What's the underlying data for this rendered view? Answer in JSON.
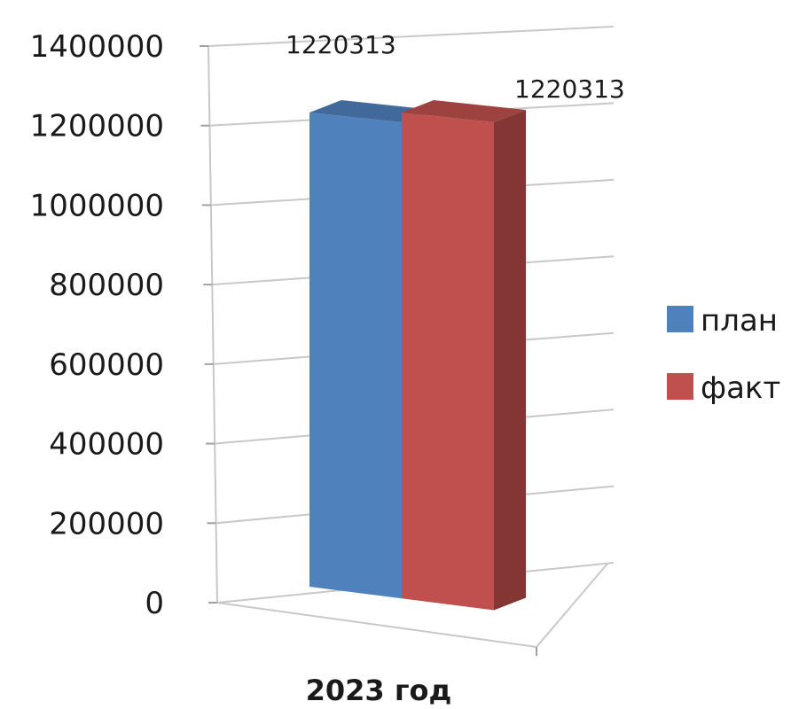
{
  "chart_data": {
    "type": "bar",
    "categories": [
      "2023 год"
    ],
    "series": [
      {
        "name": "план",
        "values": [
          1220313
        ],
        "color": "#4F81BD",
        "value_label": "1220313"
      },
      {
        "name": "факт",
        "values": [
          1220313
        ],
        "color": "#C0504D",
        "value_label": "1220313"
      }
    ],
    "title": "",
    "xlabel": "",
    "ylabel": "",
    "ylim": [
      0,
      1400000
    ],
    "y_ticks": [
      0,
      200000,
      400000,
      600000,
      800000,
      1000000,
      1200000,
      1400000
    ],
    "y_tick_labels": [
      "0",
      "200000",
      "400000",
      "600000",
      "800000",
      "1000000",
      "1200000",
      "1400000"
    ],
    "grid": true,
    "legend_position": "right",
    "style": "3d-column"
  }
}
